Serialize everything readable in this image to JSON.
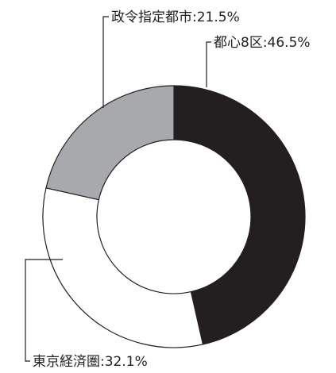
{
  "chart_data": {
    "type": "pie",
    "variant": "donut",
    "categories": [
      "都心8区",
      "東京経済圏",
      "政令指定都市"
    ],
    "values": [
      46.5,
      32.1,
      21.5
    ],
    "unit": "%",
    "slices": [
      {
        "label": "都心8区",
        "value": 46.5,
        "text": "都心8区:46.5%",
        "color": "#231f20"
      },
      {
        "label": "東京経済圏",
        "value": 32.1,
        "text": "東京経済圏:32.1%",
        "color": "#ffffff"
      },
      {
        "label": "政令指定都市",
        "value": 21.5,
        "text": "政令指定都市:21.5%",
        "color": "#a7a9ac"
      }
    ],
    "start_angle": "12 o'clock",
    "direction": "clockwise",
    "legend": "none"
  },
  "colors": {
    "outline": "#231f20",
    "leader_line": "#231f20",
    "label_text": "#222222"
  }
}
